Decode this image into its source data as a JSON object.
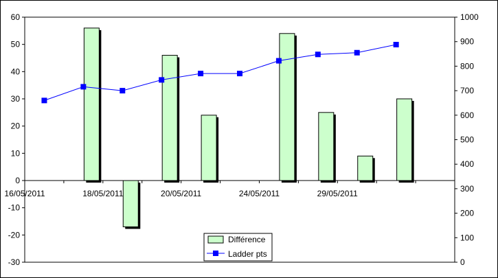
{
  "chart_data": {
    "type": "bar",
    "categories": [
      "16/05/2011",
      "",
      "18/05/2011",
      "",
      "20/05/2011",
      "",
      "24/05/2011",
      "",
      "29/05/2011",
      ""
    ],
    "x_tick_labels": [
      "16/05/2011",
      "18/05/2011",
      "20/05/2011",
      "24/05/2011",
      "29/05/2011"
    ],
    "series": [
      {
        "name": "Différence",
        "kind": "bar",
        "axis": "left",
        "values": [
          null,
          56,
          -17,
          46,
          24,
          null,
          54,
          25,
          9,
          30
        ],
        "color": "#ccffcc"
      },
      {
        "name": "Ladder pts",
        "kind": "line",
        "axis": "right",
        "values": [
          660,
          716,
          700,
          744,
          770,
          770,
          822,
          848,
          855,
          888
        ],
        "color": "#0000ff"
      }
    ],
    "y_left": {
      "ylim": [
        -30,
        60
      ],
      "ticks": [
        "-30",
        "-20",
        "-10",
        "0",
        "10",
        "20",
        "30",
        "40",
        "50",
        "60"
      ]
    },
    "y_right": {
      "ylim": [
        0,
        1000
      ],
      "ticks": [
        "0",
        "100",
        "200",
        "300",
        "400",
        "500",
        "600",
        "700",
        "800",
        "900",
        "1000"
      ]
    },
    "grid": false,
    "legend": {
      "position": "bottom-center",
      "entries": [
        "Différence",
        "Ladder pts"
      ]
    }
  }
}
